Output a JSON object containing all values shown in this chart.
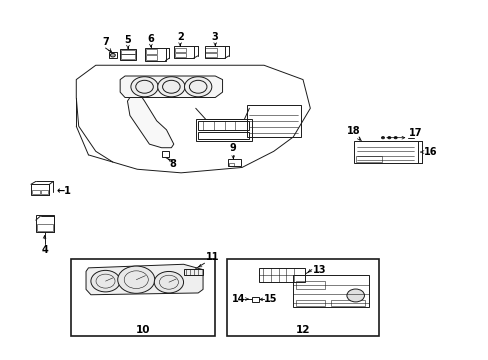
{
  "bg_color": "#ffffff",
  "line_color": "#1a1a1a",
  "fig_w": 4.89,
  "fig_h": 3.6,
  "dpi": 100,
  "labels": {
    "1": [
      0.148,
      0.455,
      0.098,
      0.455
    ],
    "4": [
      0.098,
      0.355,
      0.098,
      0.31
    ],
    "5": [
      0.27,
      0.87,
      0.27,
      0.845
    ],
    "6": [
      0.32,
      0.875,
      0.318,
      0.85
    ],
    "7": [
      0.225,
      0.865,
      0.228,
      0.84
    ],
    "2": [
      0.378,
      0.882,
      0.37,
      0.858
    ],
    "3": [
      0.44,
      0.882,
      0.438,
      0.858
    ],
    "8": [
      0.348,
      0.545,
      0.348,
      0.53
    ],
    "9": [
      0.48,
      0.565,
      0.48,
      0.548
    ],
    "10": [
      0.285,
      0.068,
      null,
      null
    ],
    "11": [
      0.43,
      0.695,
      0.415,
      0.678
    ],
    "12": [
      0.665,
      0.068,
      null,
      null
    ],
    "13": [
      0.655,
      0.7,
      0.638,
      0.7
    ],
    "14": [
      0.575,
      0.65,
      0.598,
      0.65
    ],
    "15": [
      0.622,
      0.645,
      0.615,
      0.645
    ],
    "16": [
      0.87,
      0.56,
      0.848,
      0.56
    ],
    "17": [
      0.84,
      0.578,
      0.82,
      0.578
    ],
    "18": [
      0.778,
      0.582,
      0.792,
      0.57
    ]
  }
}
